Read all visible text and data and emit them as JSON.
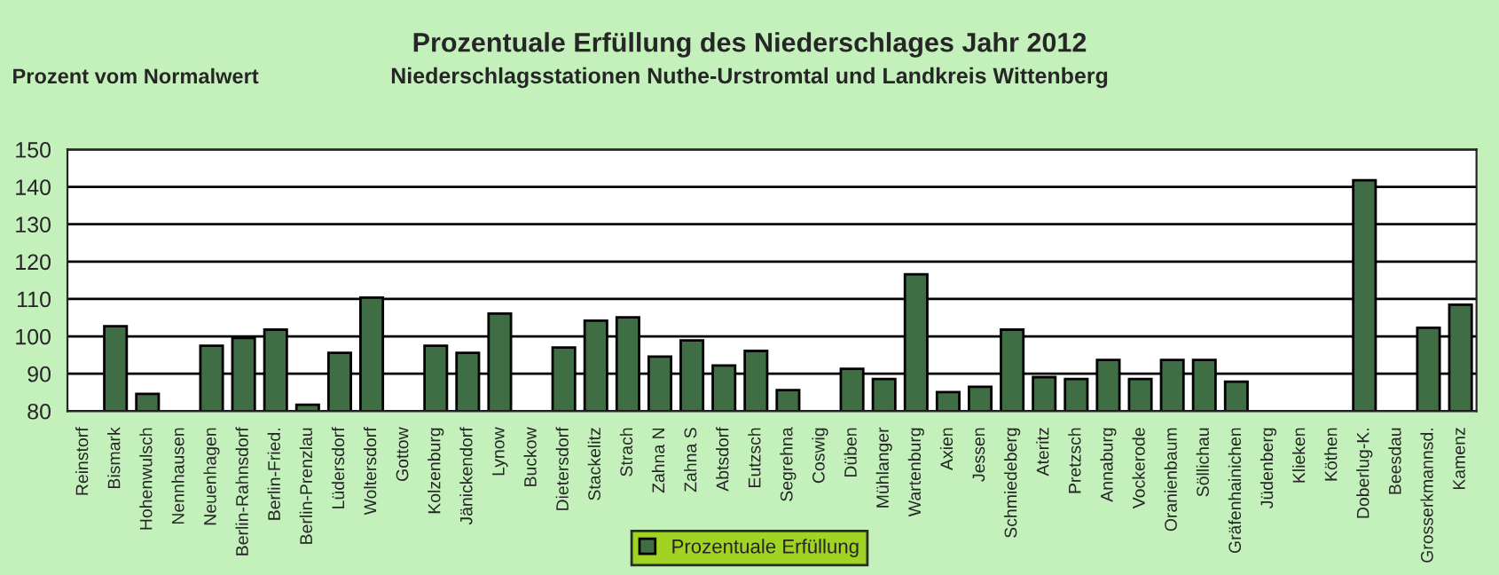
{
  "chart_data": {
    "type": "bar",
    "title": "Prozentuale Erfüllung des Niederschlages Jahr 2012",
    "subtitle": "Niederschlagsstationen Nuthe-Urstromtal und Landkreis Wittenberg",
    "ylabel": "Prozent vom Normalwert",
    "categories": [
      "Reinstorf",
      "Bismark",
      "Hohenwulsch",
      "Nennhausen",
      "Neuenhagen",
      "Berlin-Rahnsdorf",
      "Berlin-Fried.",
      "Berlin-Prenzlau",
      "Lüdersdorf",
      "Woltersdorf",
      "Gottow",
      "Kolzenburg",
      "Jänickendorf",
      "Lynow",
      "Buckow",
      "Dietersdorf",
      "Stackelitz",
      "Strach",
      "Zahna N",
      "Zahna S",
      "Abtsdorf",
      "Eutzsch",
      "Segrehna",
      "Coswig",
      "Düben",
      "Mühlanger",
      "Wartenburg",
      "Axien",
      "Jessen",
      "Schmiedeberg",
      "Ateritz",
      "Pretzsch",
      "Annaburg",
      "Vockerode",
      "Oranienbaum",
      "Söllichau",
      "Gräfenhainichen",
      "Jüdenberg",
      "Klieken",
      "Köthen",
      "Doberlug-K.",
      "Beesdau",
      "Grosserkmannsd.",
      "Kamenz"
    ],
    "series": [
      {
        "name": "Prozentuale Erfüllung",
        "color": "#3f6e45",
        "values": [
          null,
          102.7,
          84.6,
          null,
          97.5,
          99.6,
          101.8,
          81.7,
          95.6,
          110.4,
          null,
          97.5,
          95.6,
          106.1,
          null,
          97.0,
          104.2,
          105.1,
          94.6,
          98.9,
          92.2,
          96.1,
          85.6,
          null,
          91.3,
          88.6,
          116.6,
          85.1,
          86.5,
          101.8,
          89.1,
          88.6,
          93.7,
          88.6,
          93.7,
          93.7,
          87.9,
          null,
          null,
          null,
          141.8,
          null,
          102.3,
          108.5
        ]
      }
    ],
    "ylim": [
      80,
      150
    ],
    "yticks": [
      80,
      90,
      100,
      110,
      120,
      130,
      140,
      150
    ],
    "grid": "y",
    "legend": "bottom"
  }
}
